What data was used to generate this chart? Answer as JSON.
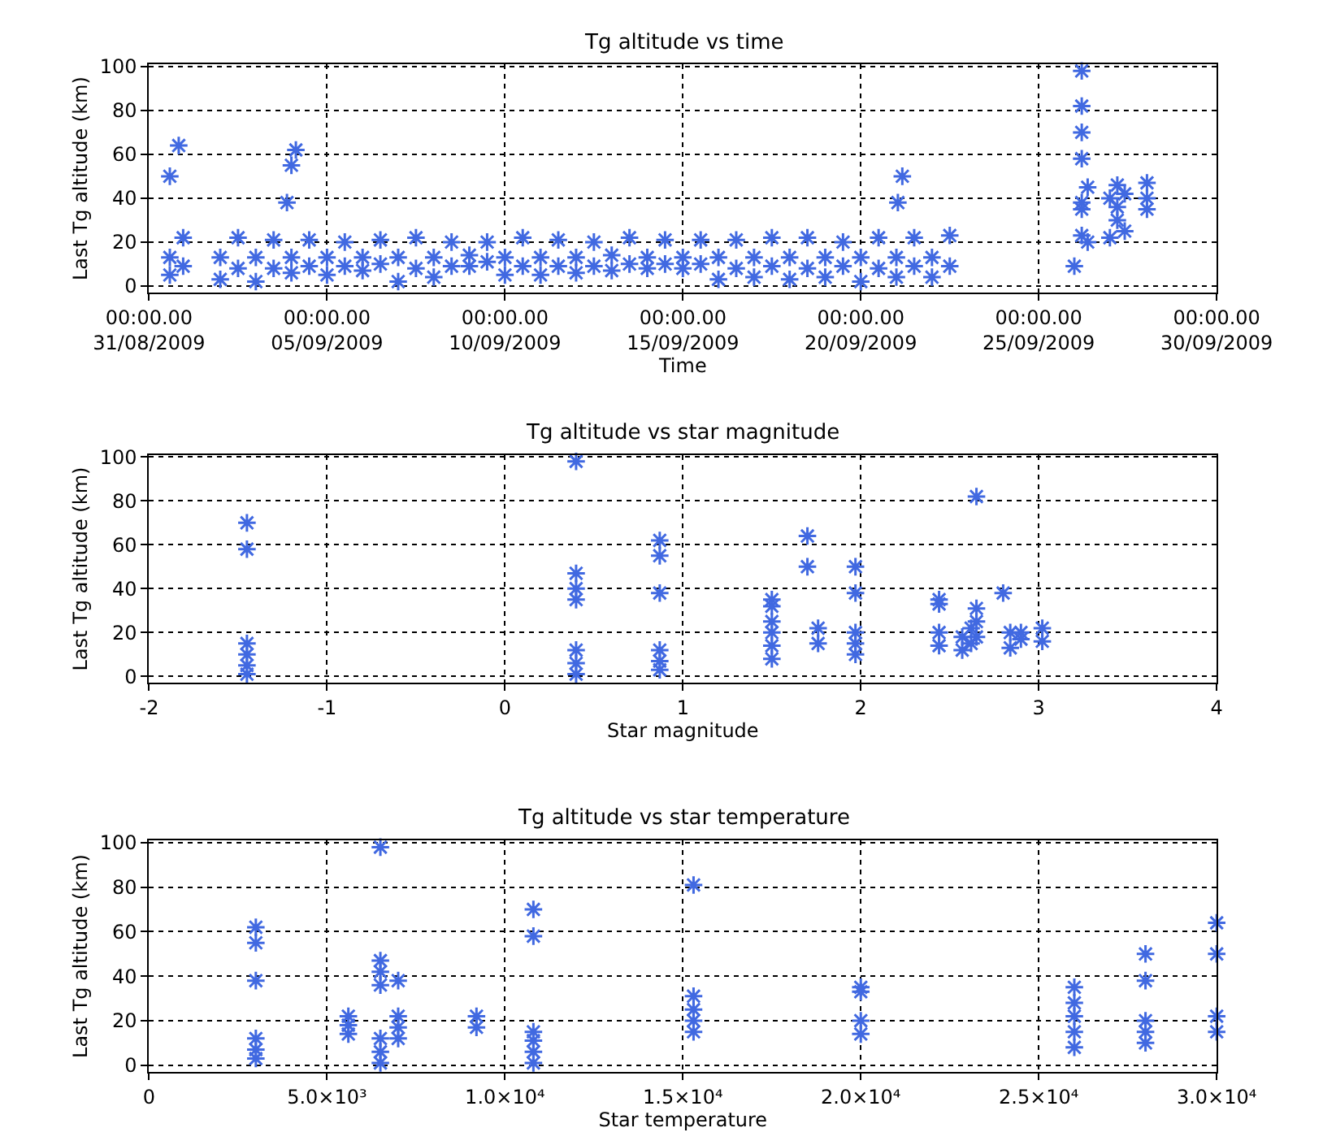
{
  "chart_data": [
    {
      "type": "scatter",
      "title": "Tg altitude vs time",
      "xlabel": "Time",
      "ylabel": "Last Tg altitude (km)",
      "marker": "cross",
      "grid": true,
      "xlim": [
        "2009-08-31",
        "2009-09-30"
      ],
      "xticks": [
        {
          "value": "2009-08-31",
          "label": "00:00.00\n31/08/2009"
        },
        {
          "value": "2009-09-05",
          "label": "00:00.00\n05/09/2009"
        },
        {
          "value": "2009-09-10",
          "label": "00:00.00\n10/09/2009"
        },
        {
          "value": "2009-09-15",
          "label": "00:00.00\n15/09/2009"
        },
        {
          "value": "2009-09-20",
          "label": "00:00.00\n20/09/2009"
        },
        {
          "value": "2009-09-25",
          "label": "00:00.00\n25/09/2009"
        },
        {
          "value": "2009-09-30",
          "label": "00:00.00\n30/09/2009"
        }
      ],
      "ylim": [
        -3,
        101
      ],
      "yticks": [
        0,
        20,
        40,
        60,
        80,
        100
      ],
      "series": [
        {
          "color": "#4169e1",
          "x": [
            "2009-08-31T14:00",
            "2009-08-31T14:00",
            "2009-08-31T23:00",
            "2009-08-31T23:00",
            "2009-09-02T00:00",
            "2009-09-02T00:00",
            "2009-09-02T12:00",
            "2009-09-02T12:00",
            "2009-09-03T00:00",
            "2009-09-03T00:00",
            "2009-09-03T12:00",
            "2009-09-03T12:00",
            "2009-09-04T00:00",
            "2009-09-04T00:00",
            "2009-09-04T12:00",
            "2009-09-04T12:00",
            "2009-09-05T00:00",
            "2009-09-05T00:00",
            "2009-09-05T12:00",
            "2009-09-05T12:00",
            "2009-09-06T00:00",
            "2009-09-06T00:00",
            "2009-09-06T12:00",
            "2009-09-06T12:00",
            "2009-09-07T00:00",
            "2009-09-07T00:00",
            "2009-09-07T12:00",
            "2009-09-07T12:00",
            "2009-09-08T00:00",
            "2009-09-08T00:00",
            "2009-09-08T12:00",
            "2009-09-08T12:00",
            "2009-09-09T00:00",
            "2009-09-09T00:00",
            "2009-09-09T12:00",
            "2009-09-09T12:00",
            "2009-09-10T00:00",
            "2009-09-10T00:00",
            "2009-09-10T12:00",
            "2009-09-10T12:00",
            "2009-09-11T00:00",
            "2009-09-11T00:00",
            "2009-09-11T12:00",
            "2009-09-11T12:00",
            "2009-09-12T00:00",
            "2009-09-12T00:00",
            "2009-09-12T12:00",
            "2009-09-12T12:00",
            "2009-09-13T00:00",
            "2009-09-13T00:00",
            "2009-09-13T12:00",
            "2009-09-13T12:00",
            "2009-09-14T00:00",
            "2009-09-14T00:00",
            "2009-09-14T12:00",
            "2009-09-14T12:00",
            "2009-09-15T00:00",
            "2009-09-15T00:00",
            "2009-09-15T12:00",
            "2009-09-15T12:00",
            "2009-09-16T00:00",
            "2009-09-16T00:00",
            "2009-09-16T12:00",
            "2009-09-16T12:00",
            "2009-09-17T00:00",
            "2009-09-17T00:00",
            "2009-09-17T12:00",
            "2009-09-17T12:00",
            "2009-09-18T00:00",
            "2009-09-18T00:00",
            "2009-09-18T12:00",
            "2009-09-18T12:00",
            "2009-09-19T00:00",
            "2009-09-19T00:00",
            "2009-09-19T12:00",
            "2009-09-19T12:00",
            "2009-09-20T00:00",
            "2009-09-20T00:00",
            "2009-09-20T12:00",
            "2009-09-20T12:00",
            "2009-09-21T00:00",
            "2009-09-21T00:00",
            "2009-09-21T12:00",
            "2009-09-21T12:00",
            "2009-09-22T00:00",
            "2009-09-22T00:00",
            "2009-09-22T12:00",
            "2009-09-22T12:00",
            "2009-08-31T14:00",
            "2009-08-31T20:00",
            "2009-09-03T21:00",
            "2009-09-04T00:00",
            "2009-09-04T03:00",
            "2009-09-21T01:00",
            "2009-09-21T04:00",
            "2009-09-26T00:00",
            "2009-09-26T05:00",
            "2009-09-26T05:00",
            "2009-09-26T05:00",
            "2009-09-26T05:00",
            "2009-09-26T05:00",
            "2009-09-26T05:00",
            "2009-09-26T05:00",
            "2009-09-26T09:00",
            "2009-09-26T09:00",
            "2009-09-27T00:00",
            "2009-09-27T00:00",
            "2009-09-27T05:00",
            "2009-09-27T05:00",
            "2009-09-27T05:00",
            "2009-09-27T10:00",
            "2009-09-27T10:00",
            "2009-09-28T01:00",
            "2009-09-28T01:00",
            "2009-09-28T01:00"
          ],
          "values": [
            5,
            13,
            9,
            22,
            3,
            13,
            8,
            22,
            2,
            13,
            8,
            21,
            6,
            13,
            9,
            21,
            5,
            13,
            9,
            20,
            7,
            13,
            10,
            21,
            2,
            13,
            8,
            22,
            4,
            13,
            9,
            20,
            9,
            14,
            11,
            20,
            5,
            13,
            9,
            22,
            5,
            13,
            9,
            21,
            6,
            13,
            9,
            20,
            7,
            14,
            10,
            22,
            8,
            13,
            10,
            21,
            8,
            13,
            10,
            21,
            3,
            13,
            8,
            21,
            4,
            13,
            9,
            22,
            3,
            13,
            8,
            22,
            4,
            13,
            9,
            20,
            2,
            13,
            8,
            22,
            4,
            13,
            9,
            22,
            4,
            13,
            9,
            23,
            50,
            64,
            38,
            55,
            62,
            38,
            50,
            9,
            23,
            35,
            38,
            58,
            70,
            82,
            98,
            45,
            20,
            22,
            40,
            30,
            36,
            46,
            25,
            42,
            35,
            40,
            47
          ]
        }
      ]
    },
    {
      "type": "scatter",
      "title": "Tg altitude vs star magnitude",
      "xlabel": "Star magnitude",
      "ylabel": "Last Tg altitude (km)",
      "marker": "cross",
      "grid": true,
      "xlim": [
        -2,
        4
      ],
      "xticks": [
        -2,
        -1,
        0,
        1,
        2,
        3,
        4
      ],
      "ylim": [
        -3,
        101
      ],
      "yticks": [
        0,
        20,
        40,
        60,
        80,
        100
      ],
      "series": [
        {
          "color": "#4169e1",
          "x": [
            -1.45,
            -1.45,
            -1.45,
            -1.45,
            -1.45,
            -1.45,
            0.4,
            0.4,
            0.4,
            0.4,
            0.4,
            0.4,
            0.4,
            0.87,
            0.87,
            0.87,
            0.87,
            0.87,
            0.87,
            1.5,
            1.5,
            1.5,
            1.5,
            1.5,
            1.5,
            1.7,
            1.7,
            1.76,
            1.76,
            1.97,
            1.97,
            1.97,
            1.97,
            1.97,
            2.44,
            2.44,
            2.44,
            2.44,
            2.57,
            2.57,
            2.62,
            2.62,
            2.65,
            2.65,
            2.65,
            2.65,
            2.8,
            2.84,
            2.84,
            2.9,
            2.9,
            3.02,
            3.02
          ],
          "values": [
            1,
            5,
            10,
            15,
            58,
            70,
            1,
            6,
            12,
            35,
            40,
            47,
            98,
            3,
            7,
            12,
            38,
            55,
            62,
            8,
            14,
            20,
            25,
            32,
            35,
            50,
            64,
            15,
            22,
            10,
            15,
            20,
            38,
            50,
            14,
            20,
            33,
            35,
            12,
            18,
            15,
            22,
            18,
            25,
            31,
            82,
            38,
            13,
            20,
            17,
            20,
            16,
            22
          ]
        }
      ]
    },
    {
      "type": "scatter",
      "title": "Tg altitude vs star temperature",
      "xlabel": "Star temperature",
      "ylabel": "Last Tg altitude (km)",
      "marker": "cross",
      "grid": true,
      "xlim": [
        0,
        30000
      ],
      "xticks": [
        0,
        {
          "value": 5000,
          "label": "5.0×10³"
        },
        {
          "value": 10000,
          "label": "1.0×10⁴"
        },
        {
          "value": 15000,
          "label": "1.5×10⁴"
        },
        {
          "value": 20000,
          "label": "2.0×10⁴"
        },
        {
          "value": 25000,
          "label": "2.5×10⁴"
        },
        {
          "value": 30000,
          "label": "3.0×10⁴"
        }
      ],
      "ylim": [
        -3,
        101
      ],
      "yticks": [
        0,
        20,
        40,
        60,
        80,
        100
      ],
      "series": [
        {
          "color": "#4169e1",
          "x": [
            3000,
            3000,
            3000,
            3000,
            3000,
            3000,
            5600,
            5600,
            5600,
            6500,
            6500,
            6500,
            6500,
            6500,
            6500,
            6500,
            7000,
            7000,
            7000,
            7000,
            9200,
            9200,
            10800,
            10800,
            10800,
            10800,
            10800,
            10800,
            15300,
            15300,
            15300,
            15300,
            15300,
            20000,
            20000,
            20000,
            20000,
            26000,
            26000,
            26000,
            26000,
            26000,
            28000,
            28000,
            28000,
            28000,
            28000,
            30000,
            30000,
            30000,
            30000
          ],
          "values": [
            3,
            7,
            12,
            38,
            55,
            62,
            14,
            18,
            22,
            1,
            6,
            12,
            36,
            42,
            47,
            98,
            12,
            17,
            22,
            38,
            17,
            22,
            1,
            6,
            11,
            15,
            58,
            70,
            15,
            20,
            25,
            31,
            81,
            14,
            20,
            33,
            35,
            8,
            15,
            22,
            28,
            35,
            10,
            15,
            20,
            38,
            50,
            15,
            22,
            50,
            64
          ]
        }
      ]
    }
  ]
}
